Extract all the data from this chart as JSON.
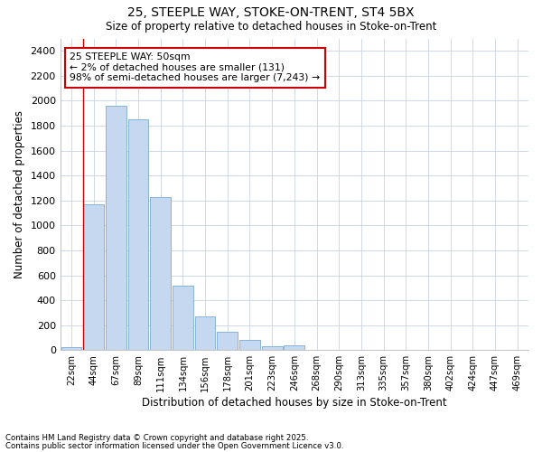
{
  "title1": "25, STEEPLE WAY, STOKE-ON-TRENT, ST4 5BX",
  "title2": "Size of property relative to detached houses in Stoke-on-Trent",
  "xlabel": "Distribution of detached houses by size in Stoke-on-Trent",
  "ylabel": "Number of detached properties",
  "categories": [
    "22sqm",
    "44sqm",
    "67sqm",
    "89sqm",
    "111sqm",
    "134sqm",
    "156sqm",
    "178sqm",
    "201sqm",
    "223sqm",
    "246sqm",
    "268sqm",
    "290sqm",
    "313sqm",
    "335sqm",
    "357sqm",
    "380sqm",
    "402sqm",
    "424sqm",
    "447sqm",
    "469sqm"
  ],
  "values": [
    25,
    1170,
    1960,
    1850,
    1230,
    520,
    270,
    145,
    85,
    30,
    35,
    5,
    2,
    2,
    1,
    1,
    1,
    1,
    1,
    1,
    1
  ],
  "bar_color": "#c5d8f0",
  "bar_edge_color": "#7aabd4",
  "vline_x_index": 1,
  "vline_color": "#cc0000",
  "annotation_text": "25 STEEPLE WAY: 50sqm\n← 2% of detached houses are smaller (131)\n98% of semi-detached houses are larger (7,243) →",
  "annotation_box_color": "#ffffff",
  "annotation_box_edgecolor": "#cc0000",
  "footnote1": "Contains HM Land Registry data © Crown copyright and database right 2025.",
  "footnote2": "Contains public sector information licensed under the Open Government Licence v3.0.",
  "bg_color": "#ffffff",
  "plot_bg_color": "#ffffff",
  "grid_color": "#d0d8e8",
  "ylim": [
    0,
    2500
  ],
  "yticks": [
    0,
    200,
    400,
    600,
    800,
    1000,
    1200,
    1400,
    1600,
    1800,
    2000,
    2200,
    2400
  ]
}
